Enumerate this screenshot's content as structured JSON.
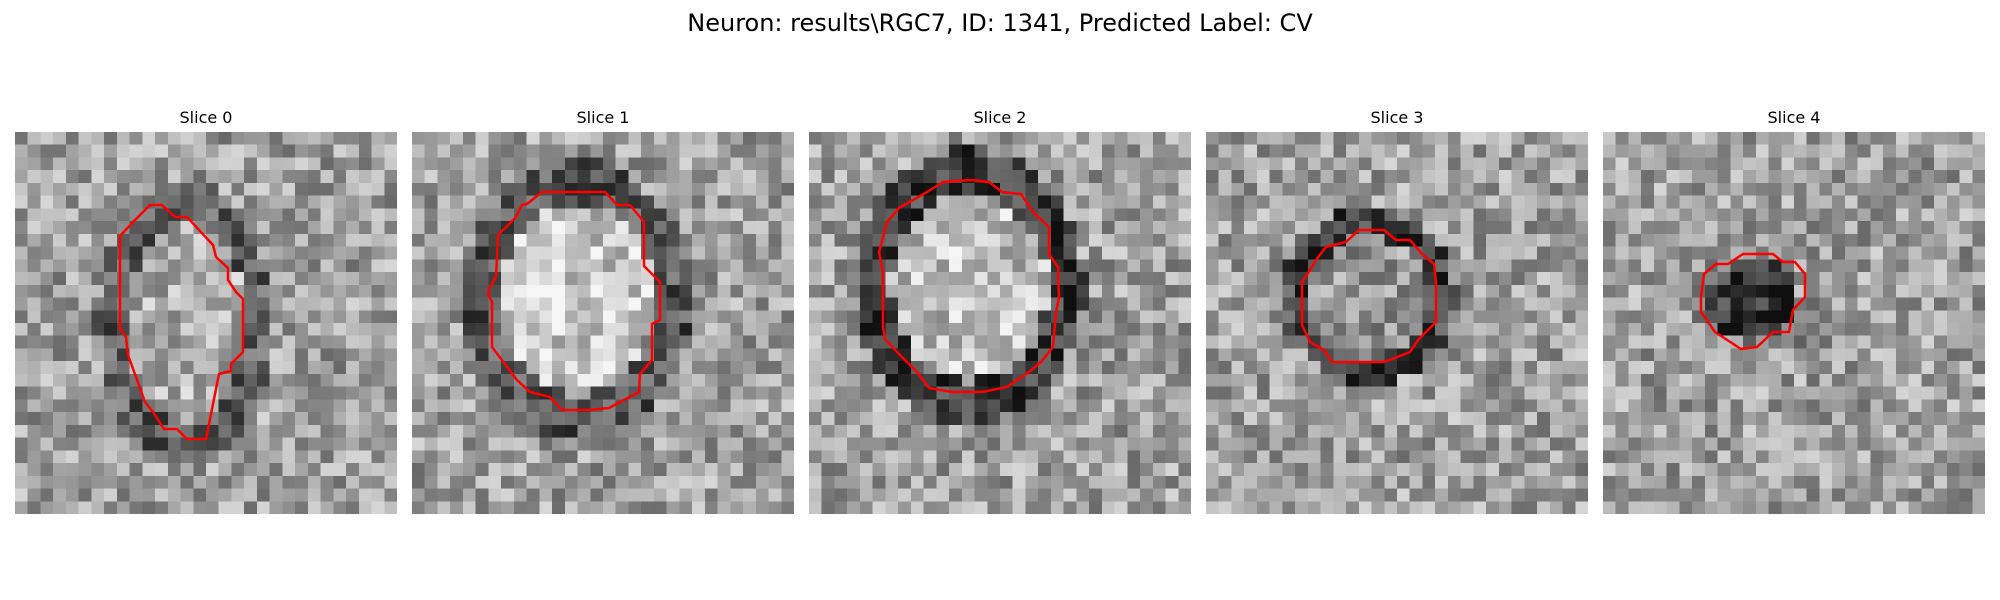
{
  "figure": {
    "title": "Neuron: results\\RGC7, ID: 1341, Predicted Label: CV"
  },
  "panels": [
    {
      "title": "Slice 0"
    },
    {
      "title": "Slice 1"
    },
    {
      "title": "Slice 2"
    },
    {
      "title": "Slice 3"
    },
    {
      "title": "Slice 4"
    }
  ],
  "colors": {
    "contour": "#ff0000",
    "background": "#ffffff"
  }
}
